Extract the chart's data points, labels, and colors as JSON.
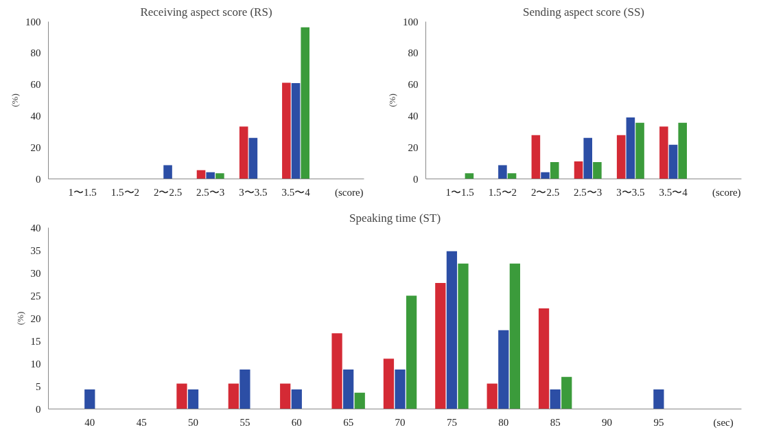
{
  "chart_data": [
    {
      "type": "bar",
      "title": "Receiving aspect score (RS)",
      "xlabel": "(score)",
      "ylabel": "(%)",
      "categories": [
        "1〜1.5",
        "1.5〜2",
        "2〜2.5",
        "2.5〜3",
        "3〜3.5",
        "3.5〜4"
      ],
      "ylim": [
        0,
        100
      ],
      "yticks": [
        0,
        20,
        40,
        60,
        80,
        100
      ],
      "grid": false,
      "series": [
        {
          "color": "#d42a35",
          "values": [
            0,
            0,
            0,
            5.6,
            33.3,
            61.1
          ]
        },
        {
          "color": "#2c4ea5",
          "values": [
            0,
            0,
            8.7,
            4.3,
            26.1,
            60.9
          ]
        },
        {
          "color": "#3b9b3b",
          "values": [
            0,
            0,
            0,
            3.6,
            0,
            96.4
          ]
        }
      ]
    },
    {
      "type": "bar",
      "title": "Sending aspect score (SS)",
      "xlabel": "(score)",
      "ylabel": "(%)",
      "categories": [
        "1〜1.5",
        "1.5〜2",
        "2〜2.5",
        "2.5〜3",
        "3〜3.5",
        "3.5〜4"
      ],
      "ylim": [
        0,
        100
      ],
      "yticks": [
        0,
        20,
        40,
        60,
        80,
        100
      ],
      "grid": false,
      "series": [
        {
          "color": "#d42a35",
          "values": [
            0,
            0,
            27.8,
            11.1,
            27.8,
            33.3
          ]
        },
        {
          "color": "#2c4ea5",
          "values": [
            0,
            8.7,
            4.3,
            26.1,
            39.1,
            21.7
          ]
        },
        {
          "color": "#3b9b3b",
          "values": [
            3.6,
            3.6,
            10.7,
            10.7,
            35.7,
            35.7
          ]
        }
      ]
    },
    {
      "type": "bar",
      "title": "Speaking time (ST)",
      "xlabel": "(sec)",
      "ylabel": "(%)",
      "categories": [
        "40",
        "45",
        "50",
        "55",
        "60",
        "65",
        "70",
        "75",
        "80",
        "85",
        "90",
        "95"
      ],
      "ylim": [
        0,
        40
      ],
      "yticks": [
        0,
        5,
        10,
        15,
        20,
        25,
        30,
        35,
        40
      ],
      "grid": false,
      "series": [
        {
          "color": "#d42a35",
          "values": [
            0,
            0,
            5.6,
            5.6,
            5.6,
            16.7,
            11.1,
            27.8,
            5.6,
            22.2,
            0,
            0
          ]
        },
        {
          "color": "#2c4ea5",
          "values": [
            4.3,
            0,
            4.3,
            8.7,
            4.3,
            8.7,
            8.7,
            34.8,
            17.4,
            4.3,
            0,
            4.3
          ]
        },
        {
          "color": "#3b9b3b",
          "values": [
            0,
            0,
            0,
            0,
            0,
            3.6,
            25.0,
            32.1,
            32.1,
            7.1,
            0,
            0
          ]
        }
      ]
    }
  ]
}
